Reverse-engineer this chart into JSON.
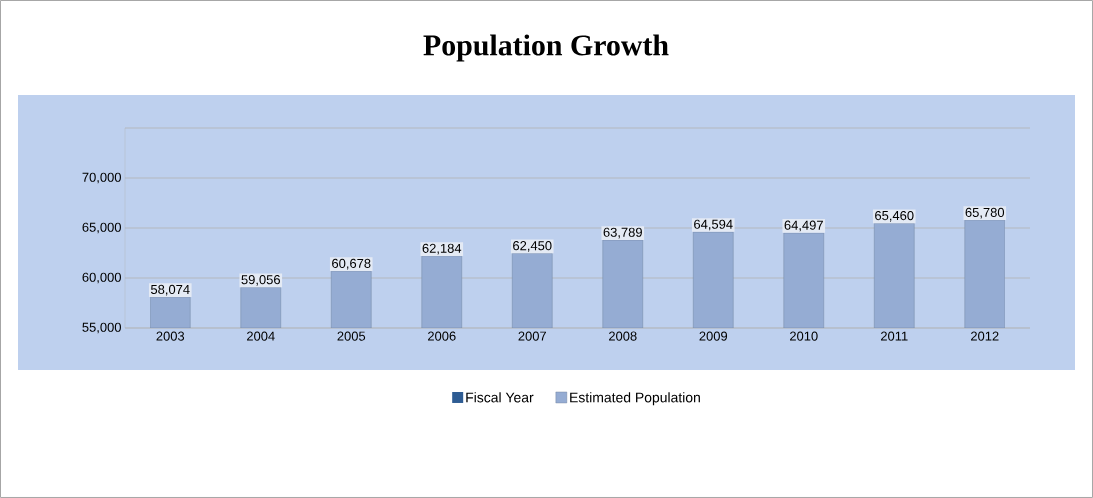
{
  "chart_data": {
    "type": "bar",
    "title": "Population Growth",
    "categories": [
      "2003",
      "2004",
      "2005",
      "2006",
      "2007",
      "2008",
      "2009",
      "2010",
      "2011",
      "2012"
    ],
    "series": [
      {
        "name": "Fiscal Year",
        "color": "#2e5c93",
        "values": [
          null,
          null,
          null,
          null,
          null,
          null,
          null,
          null,
          null,
          null
        ]
      },
      {
        "name": "Estimated Population",
        "color": "#95acd3",
        "values": [
          58074,
          59056,
          60678,
          62184,
          62450,
          63789,
          64594,
          64497,
          65460,
          65780
        ],
        "value_labels": [
          "58,074",
          "59,056",
          "60,678",
          "62,184",
          "62,450",
          "63,789",
          "64,594",
          "64,497",
          "65,460",
          "65,780"
        ]
      }
    ],
    "ylim": [
      55000,
      75000
    ],
    "yticks": [
      {
        "value": 55000,
        "label": "55,000"
      },
      {
        "value": 60000,
        "label": "60,000"
      },
      {
        "value": 65000,
        "label": "65,000"
      },
      {
        "value": 70000,
        "label": "70,000"
      },
      {
        "value": 75000,
        "label": null
      }
    ],
    "grid": "y",
    "legend": "bottom"
  }
}
